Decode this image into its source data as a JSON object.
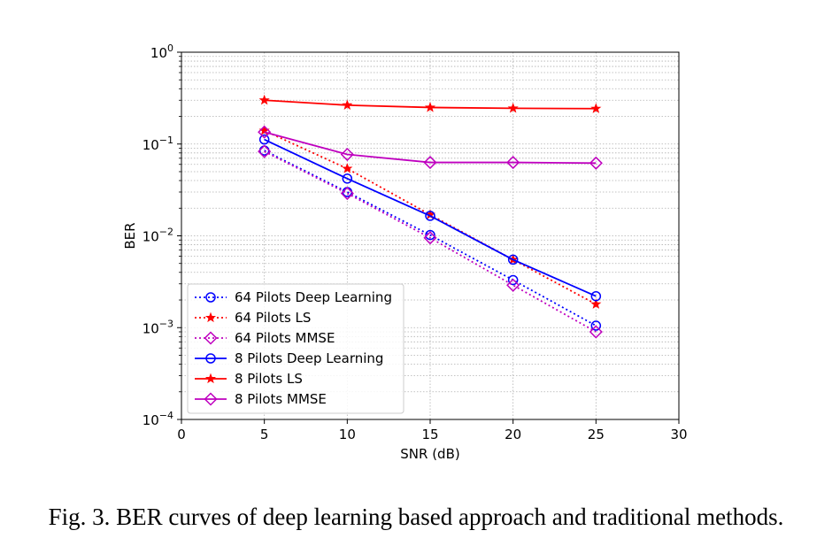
{
  "chart_data": {
    "type": "line",
    "title": "",
    "xlabel": "SNR (dB)",
    "ylabel": "BER",
    "xlim": [
      0,
      30
    ],
    "ylim": [
      0.0001,
      1
    ],
    "yscale": "log",
    "x_ticks": [
      "0",
      "5",
      "10",
      "15",
      "20",
      "25",
      "30"
    ],
    "y_ticks": [
      {
        "base": "10",
        "exp": "0"
      },
      {
        "base": "10",
        "exp": "−1"
      },
      {
        "base": "10",
        "exp": "−2"
      },
      {
        "base": "10",
        "exp": "−3"
      },
      {
        "base": "10",
        "exp": "−4"
      }
    ],
    "grid": true,
    "legend_position": "lower-left",
    "x": [
      5,
      10,
      15,
      20,
      25
    ],
    "series": [
      {
        "name": "64 Pilots Deep Learning",
        "color": "#0000ff",
        "linestyle": "dotted",
        "marker": "circle",
        "values": [
          0.085,
          0.03,
          0.0102,
          0.0033,
          0.00105
        ]
      },
      {
        "name": "64 Pilots LS",
        "color": "#ff0000",
        "linestyle": "dotted",
        "marker": "star",
        "values": [
          0.14,
          0.054,
          0.017,
          0.0055,
          0.0018
        ]
      },
      {
        "name": "64 Pilots MMSE",
        "color": "#bf00bf",
        "linestyle": "dotted",
        "marker": "diamond",
        "values": [
          0.083,
          0.029,
          0.0095,
          0.0029,
          0.0009
        ]
      },
      {
        "name": "8 Pilots Deep Learning",
        "color": "#0000ff",
        "linestyle": "solid",
        "marker": "circle",
        "values": [
          0.112,
          0.042,
          0.0165,
          0.0055,
          0.0022
        ]
      },
      {
        "name": "8 Pilots LS",
        "color": "#ff0000",
        "linestyle": "solid",
        "marker": "star",
        "values": [
          0.3,
          0.265,
          0.25,
          0.245,
          0.243
        ]
      },
      {
        "name": "8 Pilots MMSE",
        "color": "#bf00bf",
        "linestyle": "solid",
        "marker": "diamond",
        "values": [
          0.135,
          0.077,
          0.063,
          0.063,
          0.062
        ]
      }
    ]
  },
  "caption": "Fig. 3.  BER curves of deep learning based approach and traditional methods."
}
